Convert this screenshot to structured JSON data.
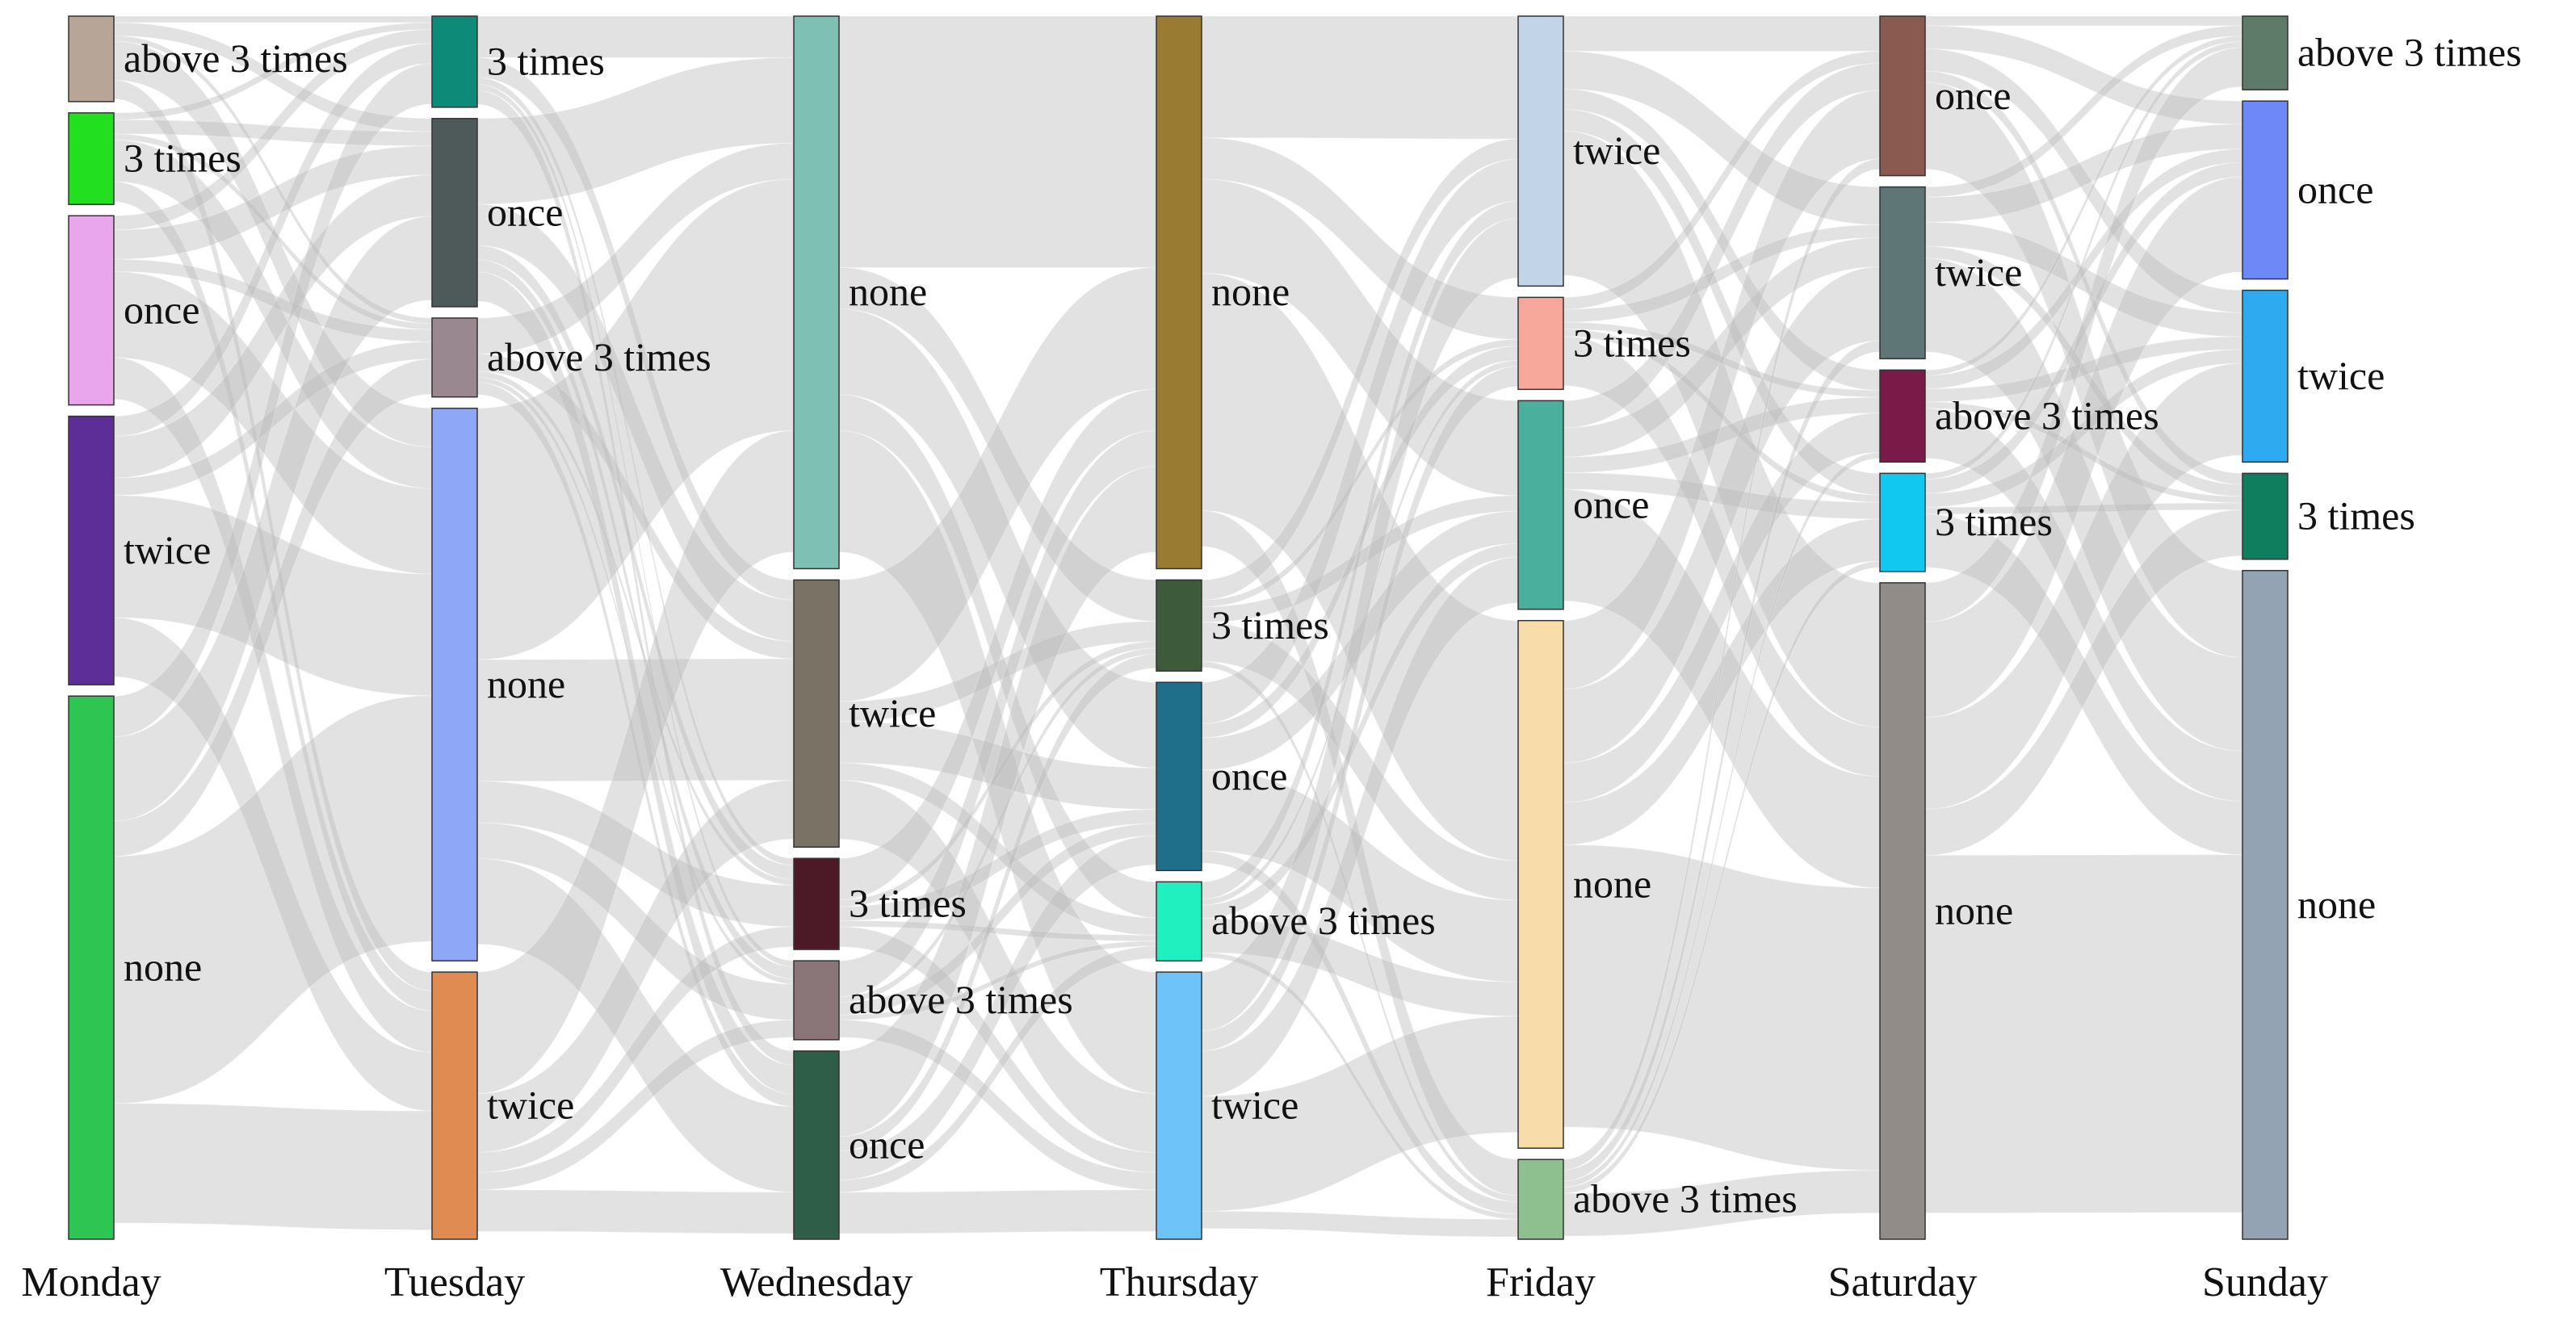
{
  "chart_data": {
    "type": "sankey",
    "days": [
      "Monday",
      "Tuesday",
      "Wednesday",
      "Thursday",
      "Friday",
      "Saturday",
      "Sunday"
    ],
    "columns": [
      {
        "day": "Monday",
        "nodes": [
          {
            "label": "above 3 times",
            "value": 0.07,
            "color": "#b7a597"
          },
          {
            "label": "3 times",
            "value": 0.075,
            "color": "#22e01f"
          },
          {
            "label": "once",
            "value": 0.155,
            "color": "#eaa6ec"
          },
          {
            "label": "twice",
            "value": 0.22,
            "color": "#5d2e98"
          },
          {
            "label": "none",
            "value": 0.445,
            "color": "#2ec552"
          }
        ]
      },
      {
        "day": "Tuesday",
        "nodes": [
          {
            "label": "3 times",
            "value": 0.075,
            "color": "#0e8a78"
          },
          {
            "label": "once",
            "value": 0.155,
            "color": "#4e5a5a"
          },
          {
            "label": "above 3 times",
            "value": 0.065,
            "color": "#9a8890"
          },
          {
            "label": "none",
            "value": 0.455,
            "color": "#8ea8f7"
          },
          {
            "label": "twice",
            "value": 0.22,
            "color": "#df8b52"
          }
        ]
      },
      {
        "day": "Wednesday",
        "nodes": [
          {
            "label": "none",
            "value": 0.455,
            "color": "#7fc0b4"
          },
          {
            "label": "twice",
            "value": 0.22,
            "color": "#7a7264"
          },
          {
            "label": "3 times",
            "value": 0.075,
            "color": "#4b1a26"
          },
          {
            "label": "above 3 times",
            "value": 0.065,
            "color": "#8a7678"
          },
          {
            "label": "once",
            "value": 0.155,
            "color": "#2f5e48"
          }
        ]
      },
      {
        "day": "Thursday",
        "nodes": [
          {
            "label": "none",
            "value": 0.455,
            "color": "#9a7b32"
          },
          {
            "label": "3 times",
            "value": 0.075,
            "color": "#3d5a3a"
          },
          {
            "label": "once",
            "value": 0.155,
            "color": "#1f6e8a"
          },
          {
            "label": "above 3 times",
            "value": 0.065,
            "color": "#20f0c0"
          },
          {
            "label": "twice",
            "value": 0.22,
            "color": "#6ec3f8"
          }
        ]
      },
      {
        "day": "Friday",
        "nodes": [
          {
            "label": "twice",
            "value": 0.22,
            "color": "#c2d4e8"
          },
          {
            "label": "3 times",
            "value": 0.075,
            "color": "#f8a89a"
          },
          {
            "label": "once",
            "value": 0.17,
            "color": "#4aaf9c"
          },
          {
            "label": "none",
            "value": 0.43,
            "color": "#f8dcaa"
          },
          {
            "label": "above 3 times",
            "value": 0.065,
            "color": "#8dc08e"
          }
        ]
      },
      {
        "day": "Saturday",
        "nodes": [
          {
            "label": "once",
            "value": 0.13,
            "color": "#8a5a50"
          },
          {
            "label": "twice",
            "value": 0.14,
            "color": "#5e7676"
          },
          {
            "label": "above 3 times",
            "value": 0.075,
            "color": "#7a1a48"
          },
          {
            "label": "3 times",
            "value": 0.08,
            "color": "#10c8f0"
          },
          {
            "label": "none",
            "value": 0.535,
            "color": "#928c88"
          }
        ]
      },
      {
        "day": "Sunday",
        "nodes": [
          {
            "label": "above 3 times",
            "value": 0.06,
            "color": "#5e7a68"
          },
          {
            "label": "once",
            "value": 0.145,
            "color": "#6e88f8"
          },
          {
            "label": "twice",
            "value": 0.14,
            "color": "#2eaaf0"
          },
          {
            "label": "3 times",
            "value": 0.07,
            "color": "#0e7e5e"
          },
          {
            "label": "none",
            "value": 0.545,
            "color": "#93a3b3"
          }
        ]
      }
    ],
    "link_color": "#b9b9b9"
  }
}
